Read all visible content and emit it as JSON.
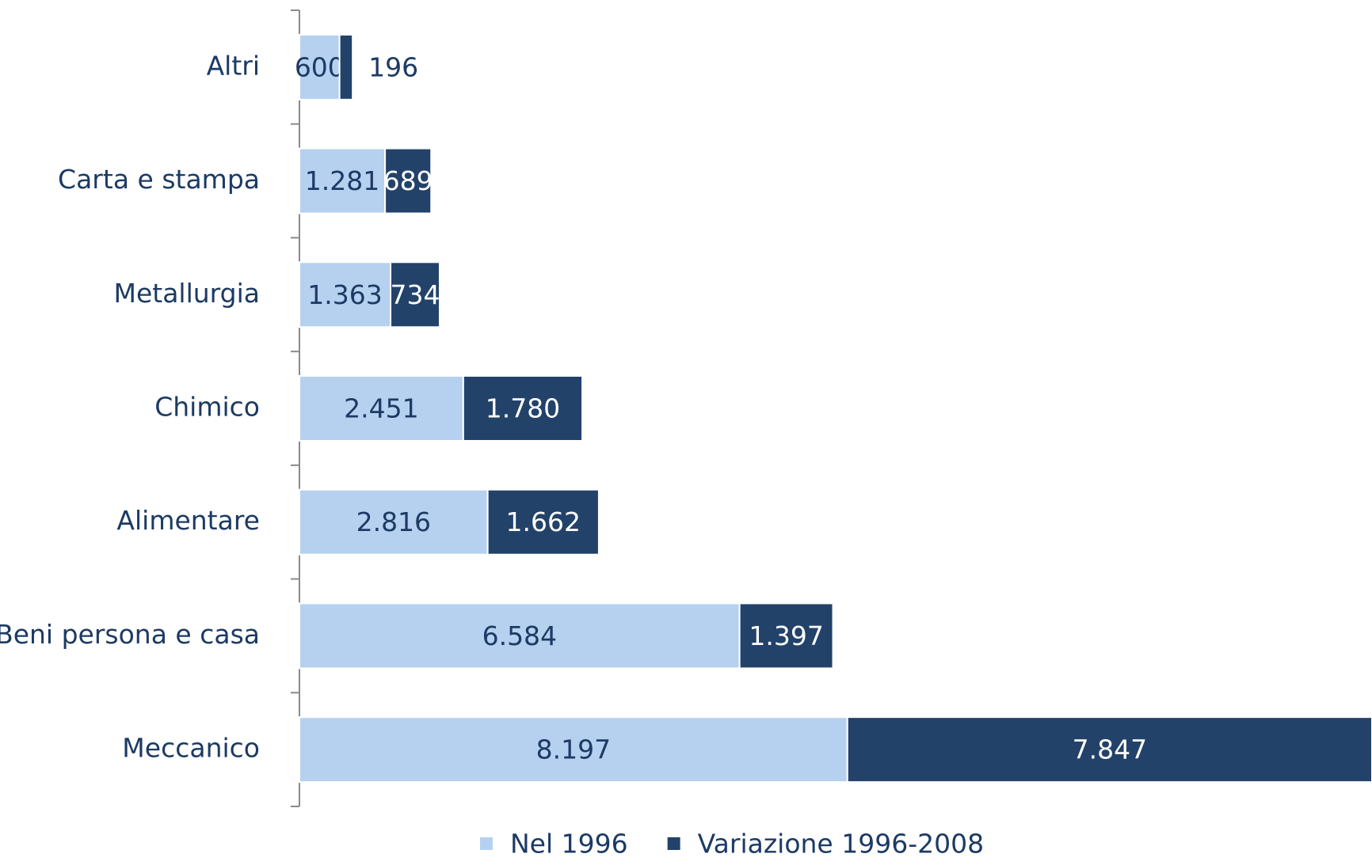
{
  "chart_data": {
    "type": "stacked_bar_horizontal",
    "categories": [
      "Altri",
      "Carta e stampa",
      "Metallurgia",
      "Chimico",
      "Alimentare",
      "Beni persona e casa",
      "Meccanico"
    ],
    "series": [
      {
        "name": "Nel 1996",
        "color": "#b5d1ef",
        "values": [
          600,
          1281,
          1363,
          2451,
          2816,
          6584,
          8197
        ],
        "value_labels": [
          "600",
          "1.281",
          "1.363",
          "2.451",
          "2.816",
          "6.584",
          "8.197"
        ]
      },
      {
        "name": "Variazione 1996-2008",
        "color": "#23426a",
        "values": [
          196,
          689,
          734,
          1780,
          1662,
          1397,
          7847
        ],
        "value_labels": [
          "196",
          "689",
          "734",
          "1.780",
          "1.662",
          "1.397",
          "7.847"
        ]
      }
    ]
  }
}
